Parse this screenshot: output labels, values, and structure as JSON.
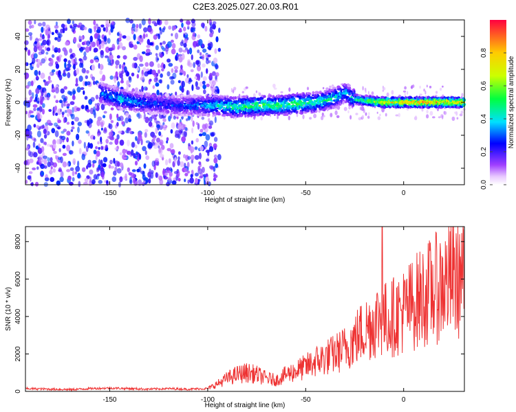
{
  "title": "C2E3.2025.027.20.03.R01",
  "colors": {
    "snr_line": "#ee3333",
    "spectrogram_background": "#ffffff"
  },
  "chart_data": [
    {
      "type": "heatmap",
      "title": "",
      "xlabel": "Height of straight line (km)",
      "ylabel": "Frequency (Hz)",
      "xlim": [
        -193,
        31
      ],
      "ylim": [
        -50,
        50
      ],
      "x_ticks": [
        -150,
        -100,
        -50,
        0
      ],
      "y_ticks": [
        -40,
        -20,
        0,
        20,
        40
      ],
      "x_tick_labels": [
        "-150",
        "-100",
        "-50",
        "0"
      ],
      "y_tick_labels": [
        "-40",
        "-20",
        "0",
        "20",
        "40"
      ],
      "colorbar": {
        "label": "Normalized spectral amplitude",
        "range": [
          0,
          1
        ],
        "ticks": [
          0.0,
          0.2,
          0.4,
          0.6,
          0.8
        ],
        "tick_labels": [
          "0.0",
          "0.2",
          "0.4",
          "0.6",
          "0.8"
        ],
        "colormap": "rainbow (white-violet-blue-cyan-green-yellow-red)"
      },
      "signal_track": {
        "x": [
          -155,
          -145,
          -135,
          -125,
          -115,
          -105,
          -95,
          -85,
          -75,
          -65,
          -55,
          -45,
          -40,
          -35,
          -30,
          -25,
          -20,
          -10,
          0,
          10,
          20,
          31
        ],
        "center_frequency": [
          6,
          2,
          0,
          -1,
          -2,
          -2,
          -2,
          -3,
          -2,
          -2,
          -1,
          0,
          1,
          3,
          6,
          2,
          1,
          0,
          0,
          0,
          0,
          0
        ],
        "peak_amplitude": [
          0.35,
          0.45,
          0.35,
          0.3,
          0.3,
          0.35,
          0.45,
          0.55,
          0.6,
          0.55,
          0.6,
          0.5,
          0.5,
          0.45,
          0.4,
          0.5,
          0.6,
          0.8,
          0.9,
          0.95,
          0.9,
          0.85
        ]
      },
      "noise_region": {
        "x_range": [
          -193,
          -100
        ],
        "frequency_range": [
          -50,
          50
        ],
        "amplitude_range": [
          0.05,
          0.3
        ]
      }
    },
    {
      "type": "line",
      "title": "",
      "xlabel": "Height of straight line (km)",
      "ylabel": "SNR (10 * v/v)",
      "xlim": [
        -193,
        31
      ],
      "ylim": [
        0,
        8800
      ],
      "x_ticks": [
        -150,
        -100,
        -50,
        0
      ],
      "y_ticks": [
        0,
        2000,
        4000,
        6000,
        8000
      ],
      "x_tick_labels": [
        "-150",
        "-100",
        "-50",
        "0"
      ],
      "y_tick_labels": [
        "0",
        "2000",
        "4000",
        "6000",
        "8000"
      ],
      "series": [
        {
          "x": [
            -193,
            -180,
            -170,
            -160,
            -150,
            -140,
            -130,
            -120,
            -110,
            -100,
            -95,
            -90,
            -85,
            -80,
            -75,
            -70,
            -65,
            -60,
            -55,
            -50,
            -45,
            -40,
            -35,
            -30,
            -25,
            -20,
            -15,
            -12,
            -10,
            -5,
            0,
            5,
            10,
            15,
            20,
            25,
            31
          ],
          "values": [
            150,
            120,
            100,
            150,
            180,
            150,
            120,
            150,
            120,
            150,
            400,
            700,
            900,
            1000,
            900,
            700,
            600,
            900,
            1100,
            1300,
            1600,
            1800,
            2000,
            2300,
            2800,
            3300,
            3700,
            4000,
            3800,
            4000,
            4300,
            4700,
            5100,
            5400,
            5700,
            6000,
            6200
          ]
        }
      ],
      "annotations": [
        {
          "x": -11,
          "y": 8800,
          "note": "sharp spike"
        }
      ]
    }
  ]
}
